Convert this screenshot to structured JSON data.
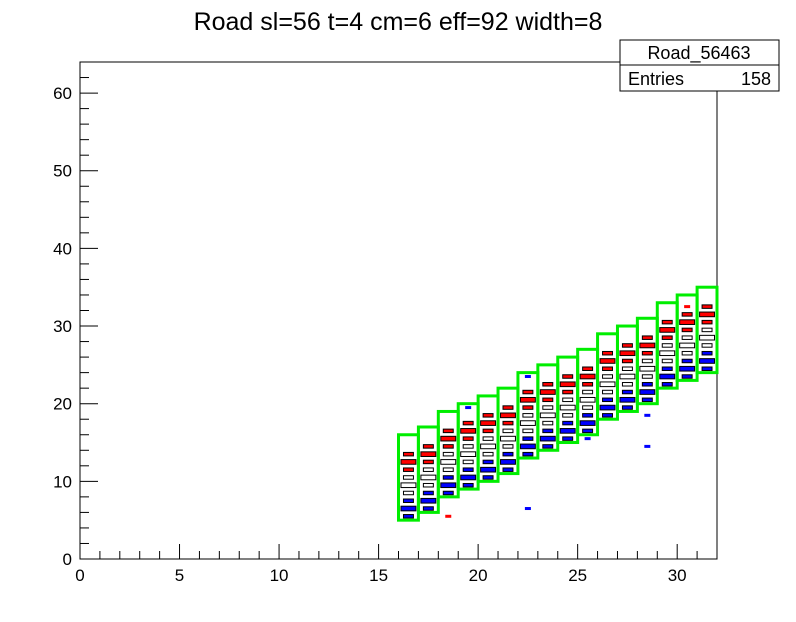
{
  "chart_data": {
    "type": "heatmap",
    "title": "Road sl=56 t=4 cm=6 eff=92 width=8",
    "xlim": [
      0,
      32
    ],
    "ylim": [
      0,
      64
    ],
    "x_ticks": [
      "0",
      "5",
      "10",
      "15",
      "20",
      "25",
      "30"
    ],
    "y_ticks": [
      "0",
      "10",
      "20",
      "30",
      "40",
      "50",
      "60"
    ],
    "grid": false,
    "legend": "none",
    "stats_box": {
      "name": "Road_56463",
      "entries_label": "Entries",
      "entries_value": "158"
    },
    "road": {
      "start_x": 16,
      "end_x": 31,
      "y_low_start": 5,
      "slope": 1.27,
      "width": 8,
      "color": "#00ee00"
    },
    "bands": [
      {
        "name": "upper",
        "color": "#ff0000",
        "offset": 6
      },
      {
        "name": "central",
        "color": "#ffffff",
        "offset": 3
      },
      {
        "name": "lower",
        "color": "#0000ff",
        "offset": 0
      }
    ],
    "outliers": [
      {
        "x": 22.5,
        "y": 6.5,
        "color": "#0000ff"
      },
      {
        "x": 28.5,
        "y": 14.5,
        "color": "#0000ff"
      },
      {
        "x": 22.5,
        "y": 23.5,
        "color": "#0000ff"
      },
      {
        "x": 19.5,
        "y": 19.5,
        "color": "#0000ff"
      },
      {
        "x": 30.5,
        "y": 32.5,
        "color": "#ff0000"
      },
      {
        "x": 18.5,
        "y": 5.5,
        "color": "#ff0000"
      },
      {
        "x": 28.5,
        "y": 18.5,
        "color": "#0000ff"
      },
      {
        "x": 25.5,
        "y": 15.5,
        "color": "#0000ff"
      }
    ]
  }
}
